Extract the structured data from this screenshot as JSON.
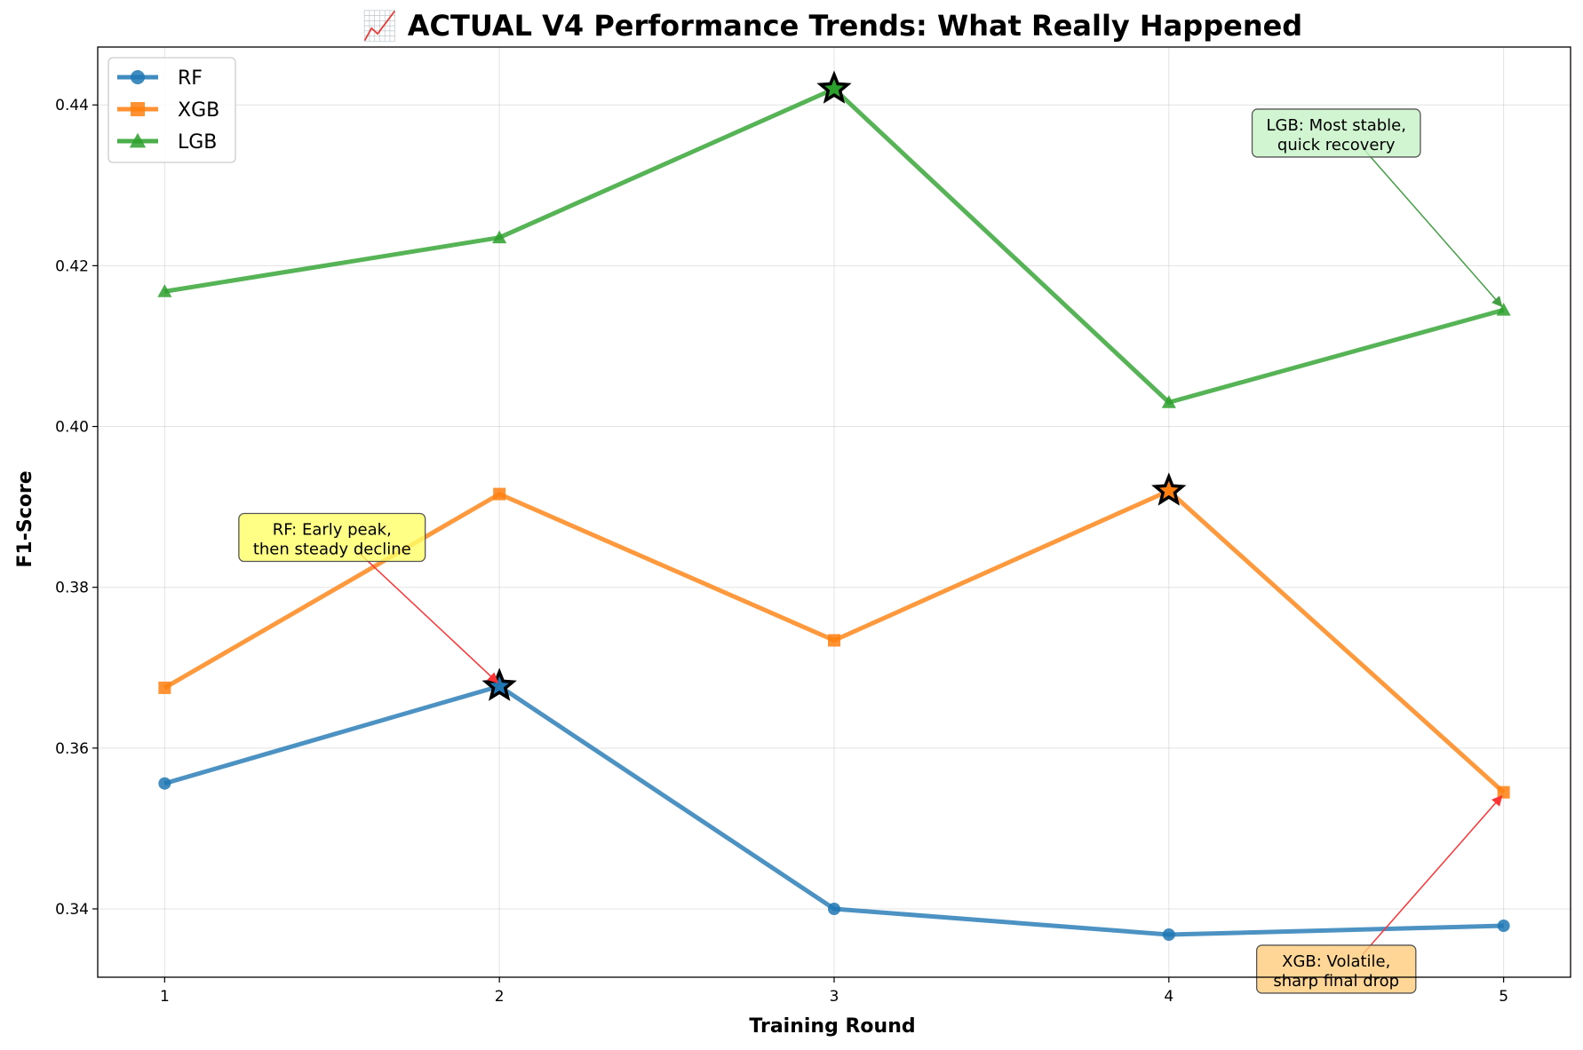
{
  "chart_data": {
    "type": "line",
    "title": "📈 ACTUAL V4 Performance Trends: What Really Happened",
    "xlabel": "Training Round",
    "ylabel": "F1-Score",
    "x": [
      1,
      2,
      3,
      4,
      5
    ],
    "xlim": [
      0.8,
      5.2
    ],
    "ylim": [
      0.3315,
      0.4472
    ],
    "yticks": [
      0.34,
      0.36,
      0.38,
      0.4,
      0.42,
      0.44
    ],
    "ytick_labels": [
      "0.34",
      "0.36",
      "0.38",
      "0.40",
      "0.42",
      "0.44"
    ],
    "xtick_labels": [
      "1",
      "2",
      "3",
      "4",
      "5"
    ],
    "grid": true,
    "legend_position": "top-left",
    "series": [
      {
        "name": "RF",
        "color": "#1f77b4",
        "marker": "circle",
        "values": [
          0.3556,
          0.3677,
          0.34,
          0.3368,
          0.3379
        ],
        "peak_index": 1
      },
      {
        "name": "XGB",
        "color": "#ff7f0e",
        "marker": "square",
        "values": [
          0.3675,
          0.3916,
          0.3734,
          0.392,
          0.3545
        ],
        "peak_index": 3
      },
      {
        "name": "LGB",
        "color": "#2ca02c",
        "marker": "triangle",
        "values": [
          0.4168,
          0.4235,
          0.442,
          0.403,
          0.4145
        ],
        "peak_index": 2
      }
    ],
    "annotations": [
      {
        "lines": [
          "RF: Early peak,",
          "then steady decline"
        ],
        "target": [
          2,
          0.3677
        ],
        "text_at": [
          1.5,
          0.3862
        ],
        "box_color": "#ffff66",
        "arrow_color": "#ff3333"
      },
      {
        "lines": [
          "LGB: Most stable,",
          "quick recovery"
        ],
        "target": [
          5,
          0.4145
        ],
        "text_at": [
          4.5,
          0.4365
        ],
        "box_color": "#c5f2c5",
        "arrow_color": "#44a044"
      },
      {
        "lines": [
          "XGB: Volatile,",
          "sharp final drop"
        ],
        "target": [
          5,
          0.3545
        ],
        "text_at": [
          4.5,
          0.3325
        ],
        "box_color": "#ffcc7a",
        "arrow_color": "#ff3333"
      }
    ]
  }
}
